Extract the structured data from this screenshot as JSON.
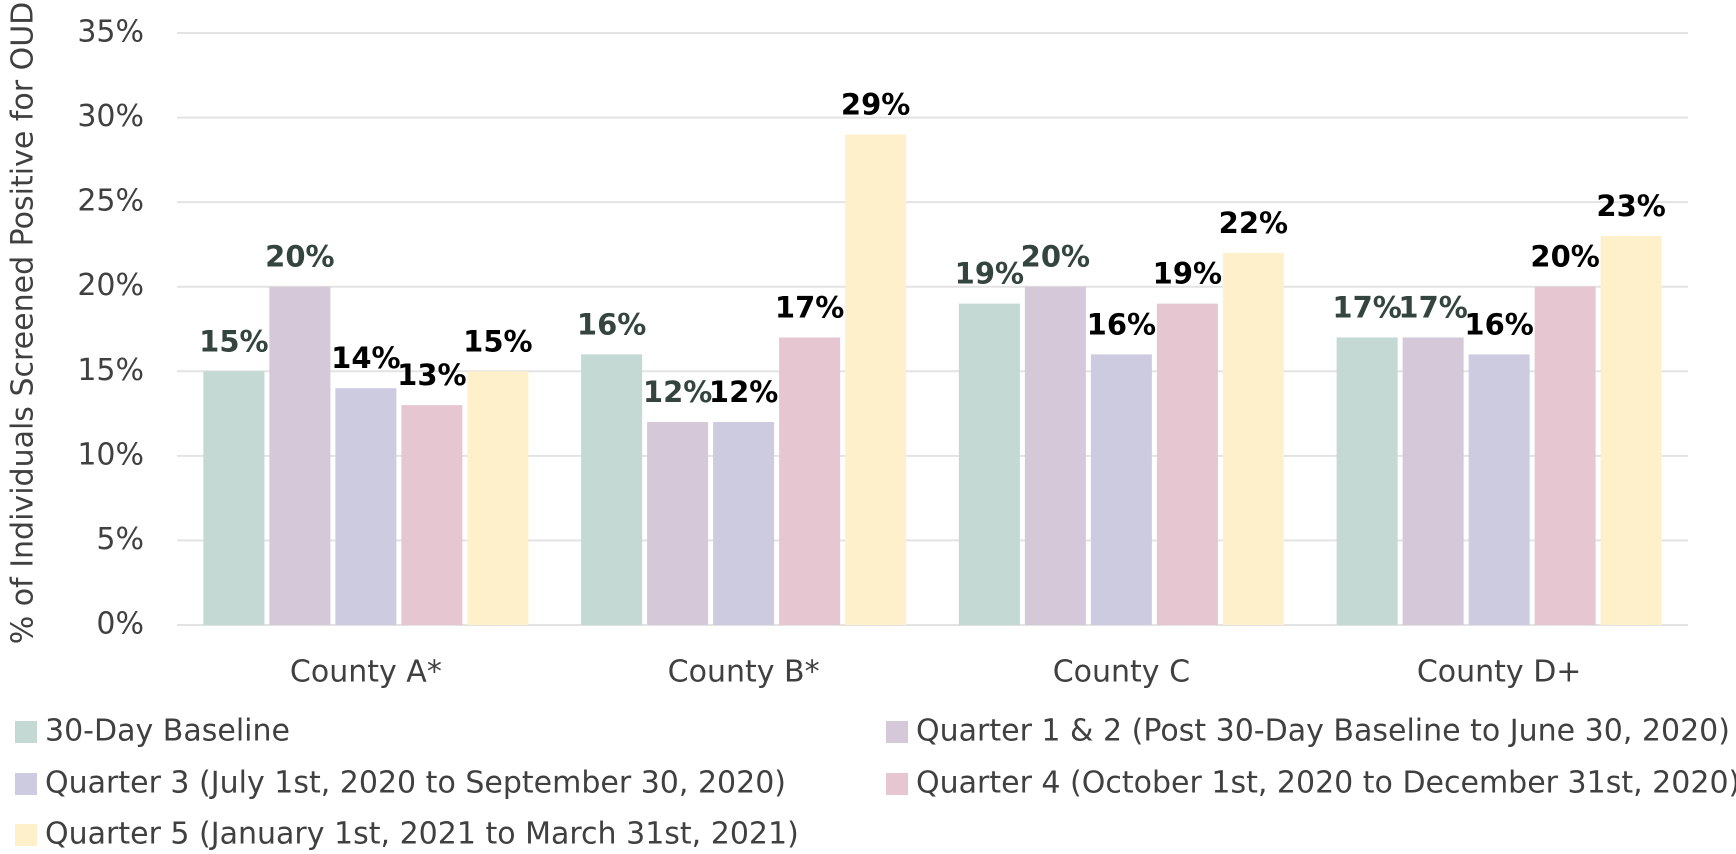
{
  "chart_data": {
    "type": "bar",
    "y_label": "% of Individuals Screened Positive for OUD",
    "categories": [
      "County A*",
      "County B*",
      "County C",
      "County D+"
    ],
    "series": [
      {
        "name": "30-Day Baseline",
        "color": "#c4d8d4",
        "label_color": "#34453f",
        "values": [
          15,
          16,
          19,
          17
        ],
        "value_labels": [
          "15%",
          "16%",
          "19%",
          "17%"
        ]
      },
      {
        "name": "Quarter 1 & 2 (Post 30-Day Baseline to June 30, 2020)",
        "color": "#d5c8d8",
        "label_color": "#34453f",
        "values": [
          20,
          12,
          20,
          17
        ],
        "value_labels": [
          "20%",
          "12%",
          "20%",
          "17%"
        ]
      },
      {
        "name": "Quarter 3 (July 1st, 2020 to September 30, 2020)",
        "color": "#cdcbe0",
        "label_color": "#000000",
        "values": [
          14,
          12,
          16,
          16
        ],
        "value_labels": [
          "14%",
          "12%",
          "16%",
          "16%"
        ]
      },
      {
        "name": "Quarter 4 (October 1st, 2020 to December 31st, 2020)",
        "color": "#e6c6d0",
        "label_color": "#000000",
        "values": [
          13,
          17,
          19,
          20
        ],
        "value_labels": [
          "13%",
          "17%",
          "19%",
          "20%"
        ]
      },
      {
        "name": "Quarter 5 (January 1st, 2021 to March 31st, 2021)",
        "color": "#fff0cc",
        "label_color": "#000000",
        "values": [
          15,
          29,
          22,
          23
        ],
        "value_labels": [
          "15%",
          "29%",
          "22%",
          "23%"
        ]
      }
    ],
    "ylim": [
      0,
      35
    ],
    "yticks": [
      {
        "value": 0,
        "label": "0%"
      },
      {
        "value": 5,
        "label": "5%"
      },
      {
        "value": 10,
        "label": "10%"
      },
      {
        "value": 15,
        "label": "15%"
      },
      {
        "value": 20,
        "label": "20%"
      },
      {
        "value": 25,
        "label": "25%"
      },
      {
        "value": 30,
        "label": "30%"
      },
      {
        "value": 35,
        "label": "35%"
      }
    ],
    "grid": true
  }
}
